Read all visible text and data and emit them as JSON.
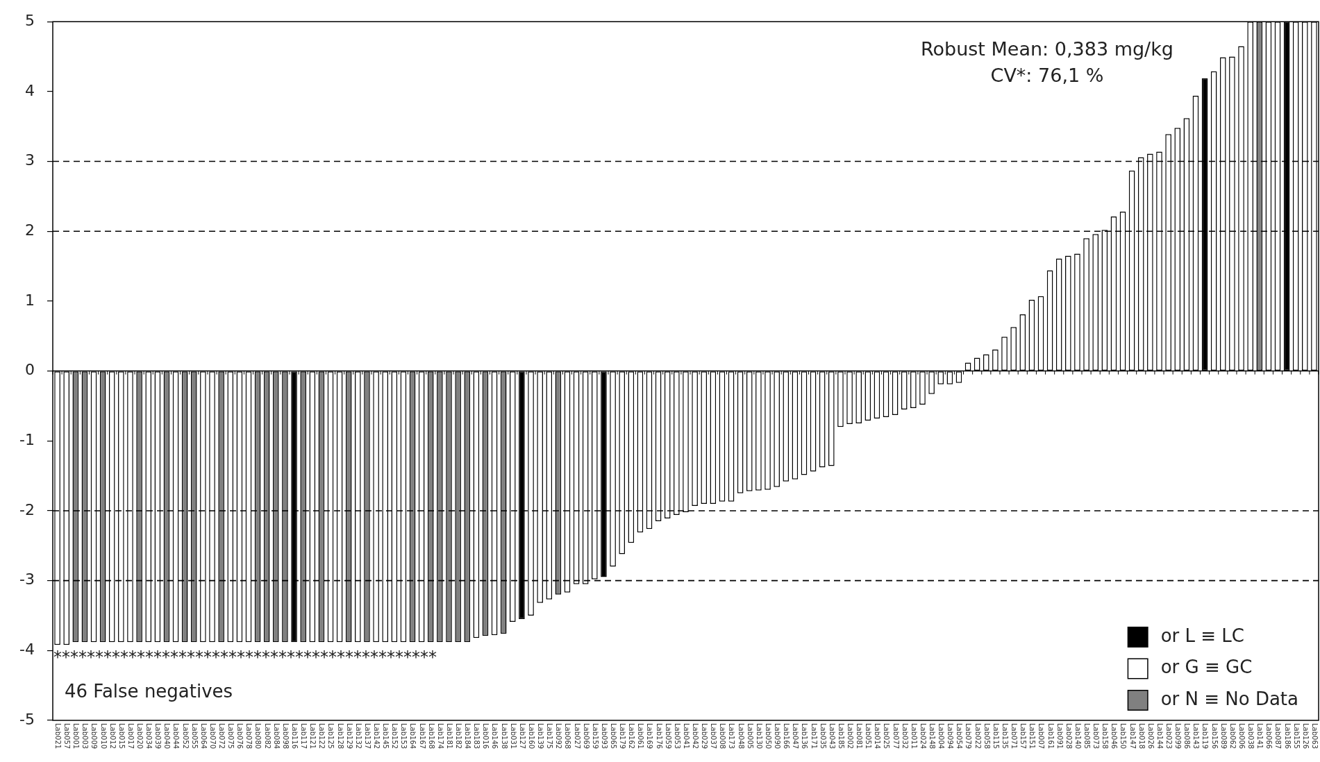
{
  "chart_data": {
    "type": "bar",
    "categories": [
      "Lab021",
      "Lab057",
      "Lab001",
      "Lab003",
      "Lab009",
      "Lab010",
      "Lab012",
      "Lab015",
      "Lab017",
      "Lab020",
      "Lab034",
      "Lab039",
      "Lab040",
      "Lab044",
      "Lab052",
      "Lab055",
      "Lab064",
      "Lab070",
      "Lab072",
      "Lab075",
      "Lab076",
      "Lab078",
      "Lab080",
      "Lab082",
      "Lab084",
      "Lab098",
      "Lab116",
      "Lab117",
      "Lab121",
      "Lab122",
      "Lab125",
      "Lab128",
      "Lab129",
      "Lab132",
      "Lab137",
      "Lab142",
      "Lab145",
      "Lab152",
      "Lab153",
      "Lab164",
      "Lab167",
      "Lab168",
      "Lab174",
      "Lab181",
      "Lab182",
      "Lab184",
      "Lab183",
      "Lab016",
      "Lab146",
      "Lab138",
      "Lab031",
      "Lab127",
      "Lab160",
      "Lab139",
      "Lab175",
      "Lab092",
      "Lab068",
      "Lab027",
      "Lab069",
      "Lab159",
      "Lab093",
      "Lab065",
      "Lab179",
      "Lab162",
      "Lab061",
      "Lab169",
      "Lab176",
      "Lab059",
      "Lab053",
      "Lab041",
      "Lab042",
      "Lab029",
      "Lab037",
      "Lab008",
      "Lab173",
      "Lab048",
      "Lab005",
      "Lab130",
      "Lab050",
      "Lab090",
      "Lab166",
      "Lab047",
      "Lab136",
      "Lab171",
      "Lab035",
      "Lab043",
      "Lab185",
      "Lab002",
      "Lab081",
      "Lab051",
      "Lab014",
      "Lab025",
      "Lab077",
      "Lab032",
      "Lab011",
      "Lab024",
      "Lab148",
      "Lab004",
      "Lab094",
      "Lab054",
      "Lab079",
      "Lab022",
      "Lab058",
      "Lab115",
      "Lab135",
      "Lab071",
      "Lab157",
      "Lab151",
      "Lab007",
      "Lab161",
      "Lab091",
      "Lab028",
      "Lab140",
      "Lab085",
      "Lab073",
      "Lab158",
      "Lab046",
      "Lab150",
      "Lab147",
      "Lab018",
      "Lab026",
      "Lab144",
      "Lab023",
      "Lab099",
      "Lab086",
      "Lab143",
      "Lab119",
      "Lab156",
      "Lab089",
      "Lab062",
      "Lab006",
      "Lab038",
      "Lab141",
      "Lab066",
      "Lab087",
      "Lab186",
      "Lab155",
      "Lab126",
      "Lab063"
    ],
    "series": [
      {
        "name": "or L ≡ LC",
        "color": "#000000",
        "values": [
          null,
          null,
          null,
          null,
          null,
          null,
          null,
          null,
          null,
          null,
          null,
          null,
          null,
          null,
          null,
          null,
          null,
          null,
          null,
          null,
          null,
          null,
          null,
          null,
          null,
          null,
          -3.88,
          null,
          null,
          null,
          null,
          null,
          null,
          null,
          null,
          null,
          null,
          null,
          null,
          null,
          null,
          null,
          null,
          null,
          null,
          null,
          null,
          null,
          null,
          null,
          null,
          -3.55,
          null,
          null,
          null,
          null,
          null,
          null,
          null,
          null,
          -2.95,
          null,
          null,
          null,
          null,
          null,
          null,
          null,
          null,
          null,
          null,
          null,
          null,
          null,
          null,
          null,
          null,
          null,
          null,
          null,
          null,
          null,
          null,
          null,
          null,
          null,
          null,
          null,
          null,
          null,
          null,
          null,
          null,
          null,
          null,
          null,
          null,
          null,
          null,
          null,
          null,
          null,
          null,
          null,
          null,
          null,
          null,
          null,
          null,
          null,
          null,
          null,
          null,
          null,
          null,
          null,
          null,
          null,
          null,
          null,
          null,
          null,
          null,
          null,
          null,
          null,
          4.19,
          null,
          null,
          null,
          null,
          null,
          null,
          null,
          null,
          5,
          null,
          null,
          null
        ]
      },
      {
        "name": "or G ≡ GC",
        "color": "#ffffff",
        "values": [
          -3.92,
          -3.92,
          null,
          null,
          -3.88,
          null,
          -3.88,
          -3.88,
          -3.88,
          null,
          -3.88,
          -3.88,
          null,
          -3.88,
          null,
          null,
          -3.88,
          -3.88,
          null,
          -3.88,
          -3.88,
          -3.88,
          null,
          null,
          null,
          null,
          null,
          null,
          -3.88,
          null,
          -3.88,
          -3.88,
          null,
          -3.88,
          null,
          -3.88,
          -3.88,
          -3.88,
          -3.88,
          null,
          -3.88,
          null,
          null,
          null,
          null,
          null,
          -3.82,
          null,
          -3.78,
          null,
          -3.59,
          null,
          -3.5,
          -3.32,
          -3.27,
          null,
          -3.17,
          -3.05,
          -3.05,
          -2.98,
          null,
          -2.8,
          -2.62,
          -2.46,
          -2.31,
          -2.26,
          -2.15,
          -2.11,
          -2.06,
          -2.02,
          -1.93,
          -1.9,
          -1.9,
          -1.87,
          -1.87,
          -1.75,
          -1.72,
          -1.71,
          -1.7,
          -1.66,
          -1.58,
          -1.55,
          -1.49,
          -1.44,
          -1.38,
          -1.36,
          -0.8,
          -0.76,
          -0.75,
          -0.71,
          -0.68,
          -0.66,
          -0.63,
          -0.55,
          -0.53,
          -0.48,
          -0.33,
          -0.19,
          -0.19,
          -0.17,
          0.12,
          0.19,
          0.24,
          0.31,
          0.49,
          0.63,
          0.81,
          1.02,
          1.07,
          1.44,
          1.61,
          1.65,
          1.68,
          1.9,
          1.96,
          2.02,
          2.21,
          2.28,
          2.87,
          3.06,
          3.11,
          3.14,
          3.39,
          3.48,
          3.62,
          3.94,
          null,
          4.29,
          4.49,
          4.5,
          4.65,
          5,
          null,
          5,
          5,
          null,
          5,
          5,
          5
        ]
      },
      {
        "name": "or N ≡ No Data",
        "color": "#808080",
        "values": [
          null,
          null,
          -3.88,
          -3.88,
          null,
          -3.88,
          null,
          null,
          null,
          -3.88,
          null,
          null,
          -3.88,
          null,
          -3.88,
          -3.88,
          null,
          null,
          -3.88,
          null,
          null,
          null,
          -3.88,
          -3.88,
          -3.88,
          -3.88,
          null,
          -3.88,
          null,
          -3.88,
          null,
          null,
          -3.88,
          null,
          -3.88,
          null,
          null,
          null,
          null,
          -3.88,
          null,
          -3.88,
          -3.88,
          -3.88,
          -3.88,
          -3.88,
          null,
          -3.79,
          null,
          -3.76,
          null,
          null,
          null,
          null,
          null,
          -3.2,
          null,
          null,
          null,
          null,
          null,
          null,
          null,
          null,
          null,
          null,
          null,
          null,
          null,
          null,
          null,
          null,
          null,
          null,
          null,
          null,
          null,
          null,
          null,
          null,
          null,
          null,
          null,
          null,
          null,
          null,
          null,
          null,
          null,
          null,
          null,
          null,
          null,
          null,
          null,
          null,
          null,
          null,
          null,
          null,
          null,
          null,
          null,
          null,
          null,
          null,
          null,
          null,
          null,
          null,
          null,
          null,
          null,
          null,
          null,
          null,
          null,
          null,
          null,
          null,
          null,
          null,
          null,
          null,
          null,
          null,
          null,
          null,
          null,
          null,
          null,
          null,
          5,
          null,
          null,
          null,
          null,
          null,
          null
        ]
      }
    ],
    "ylim": [
      -5,
      5
    ],
    "yticks": [
      -5,
      -4,
      -3,
      -2,
      -1,
      0,
      1,
      2,
      3,
      4,
      5
    ],
    "ref_lines": [
      {
        "axis": "y",
        "value": 3,
        "color": "#000000",
        "line_style": "dashed"
      },
      {
        "axis": "y",
        "value": 2,
        "color": "#000000",
        "line_style": "dashed"
      },
      {
        "axis": "y",
        "value": -2,
        "color": "#000000",
        "line_style": "dashed"
      },
      {
        "axis": "y",
        "value": -3,
        "color": "#000000",
        "line_style": "dashed"
      }
    ],
    "annotations": [
      "Robust Mean: 0,383 mg/kg",
      "CV*: 76,1 %",
      "**********************************************",
      "46 False negatives"
    ],
    "legend": "bottom right"
  }
}
